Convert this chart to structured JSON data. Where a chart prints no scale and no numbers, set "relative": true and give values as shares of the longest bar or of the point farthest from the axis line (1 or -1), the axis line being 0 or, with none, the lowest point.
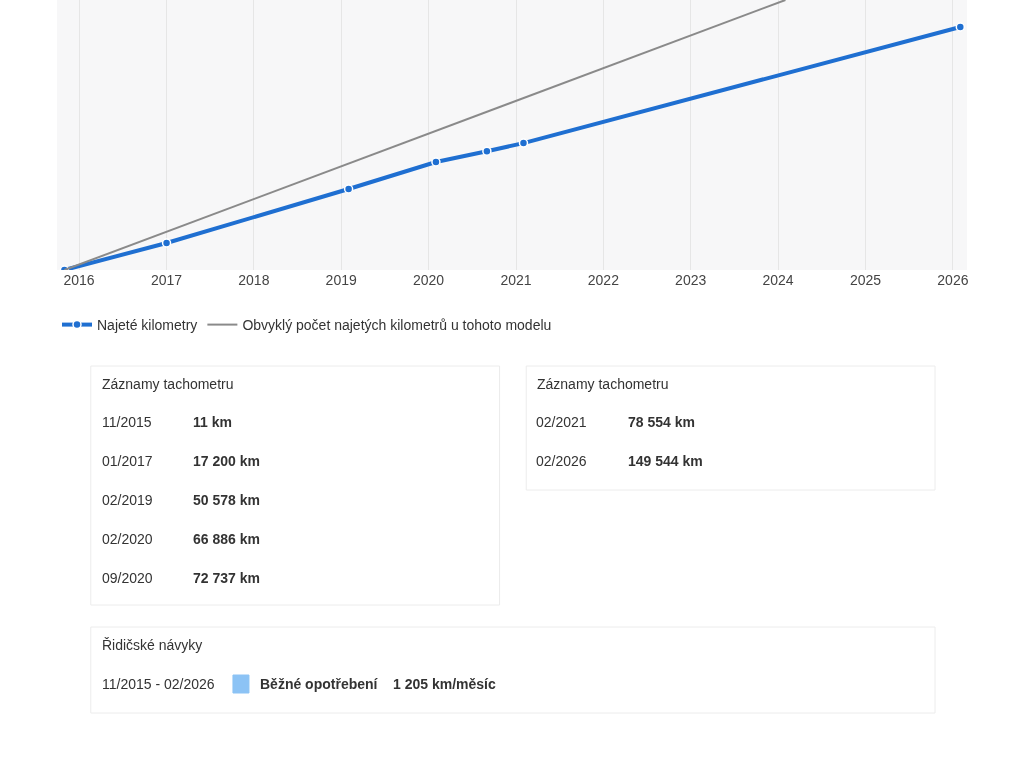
{
  "chart_data": {
    "type": "line",
    "relative": true,
    "x": [
      "2015-11",
      "2017-01",
      "2019-02",
      "2020-02",
      "2020-09",
      "2021-02",
      "2026-02"
    ],
    "series": [
      {
        "name": "Najeté kilometry",
        "color": "#1f6fd1",
        "values": [
          0,
          0.1,
          0.3,
          0.4,
          0.44,
          0.47,
          0.9
        ],
        "marker": "circle"
      },
      {
        "name": "Obvyklý počet najetých kilometrů u tohoto modelu",
        "color": "#8a8a8a",
        "x": [
          "2015-11",
          "2024-02"
        ],
        "values": [
          0,
          1
        ],
        "marker": "none"
      }
    ],
    "xlim": [
      "2015-10",
      "2026-03"
    ],
    "xticks": [
      "2016",
      "2017",
      "2018",
      "2019",
      "2020",
      "2021",
      "2022",
      "2023",
      "2024",
      "2025",
      "2026"
    ],
    "grid": "x",
    "legend": "bottom",
    "annotations": [
      "Záznamy tachometru",
      "11/2015",
      "11 km",
      "01/2017",
      "17 200 km",
      "02/2019",
      "50 578 km",
      "02/2020",
      "66 886 km",
      "09/2020",
      "72 737 km",
      "Záznamy tachometru",
      "02/2021",
      "78 554 km",
      "02/2026",
      "149 544 km",
      "Řidičské návyky",
      "11/2015 - 02/2026",
      "Běžné opotřebení",
      "1 205 km/měsíc"
    ]
  }
}
